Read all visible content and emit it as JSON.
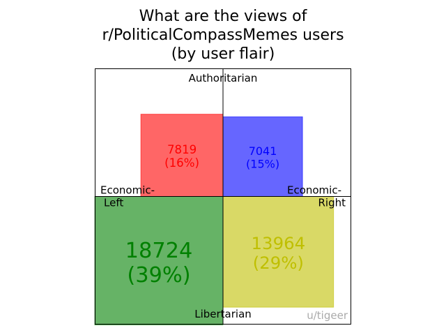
{
  "chart_data": {
    "type": "area",
    "title_lines": [
      "What are the views of",
      "r/PoliticalCompassMemes users",
      "(by user flair)"
    ],
    "axes": {
      "top": "Authoritarian",
      "bottom": "Libertarian",
      "left_line1": "Economic-",
      "left_line2": "Left",
      "right_line1": "Economic-",
      "right_line2": "Right"
    },
    "quadrants": [
      {
        "key": "auth-left",
        "count": "7819",
        "percent_label": "(16%)",
        "share": 0.16,
        "color": "#ff0000",
        "text_color": "#ff0000"
      },
      {
        "key": "auth-right",
        "count": "7041",
        "percent_label": "(15%)",
        "share": 0.15,
        "color": "#0000ff",
        "text_color": "#0000ff"
      },
      {
        "key": "lib-left",
        "count": "18724",
        "percent_label": "(39%)",
        "share": 0.39,
        "color": "#008000",
        "text_color": "#008000"
      },
      {
        "key": "lib-right",
        "count": "13964",
        "percent_label": "(29%)",
        "share": 0.29,
        "color": "#bfbf00",
        "text_color": "#bfbf00"
      }
    ],
    "credit": "u/tigeer"
  }
}
